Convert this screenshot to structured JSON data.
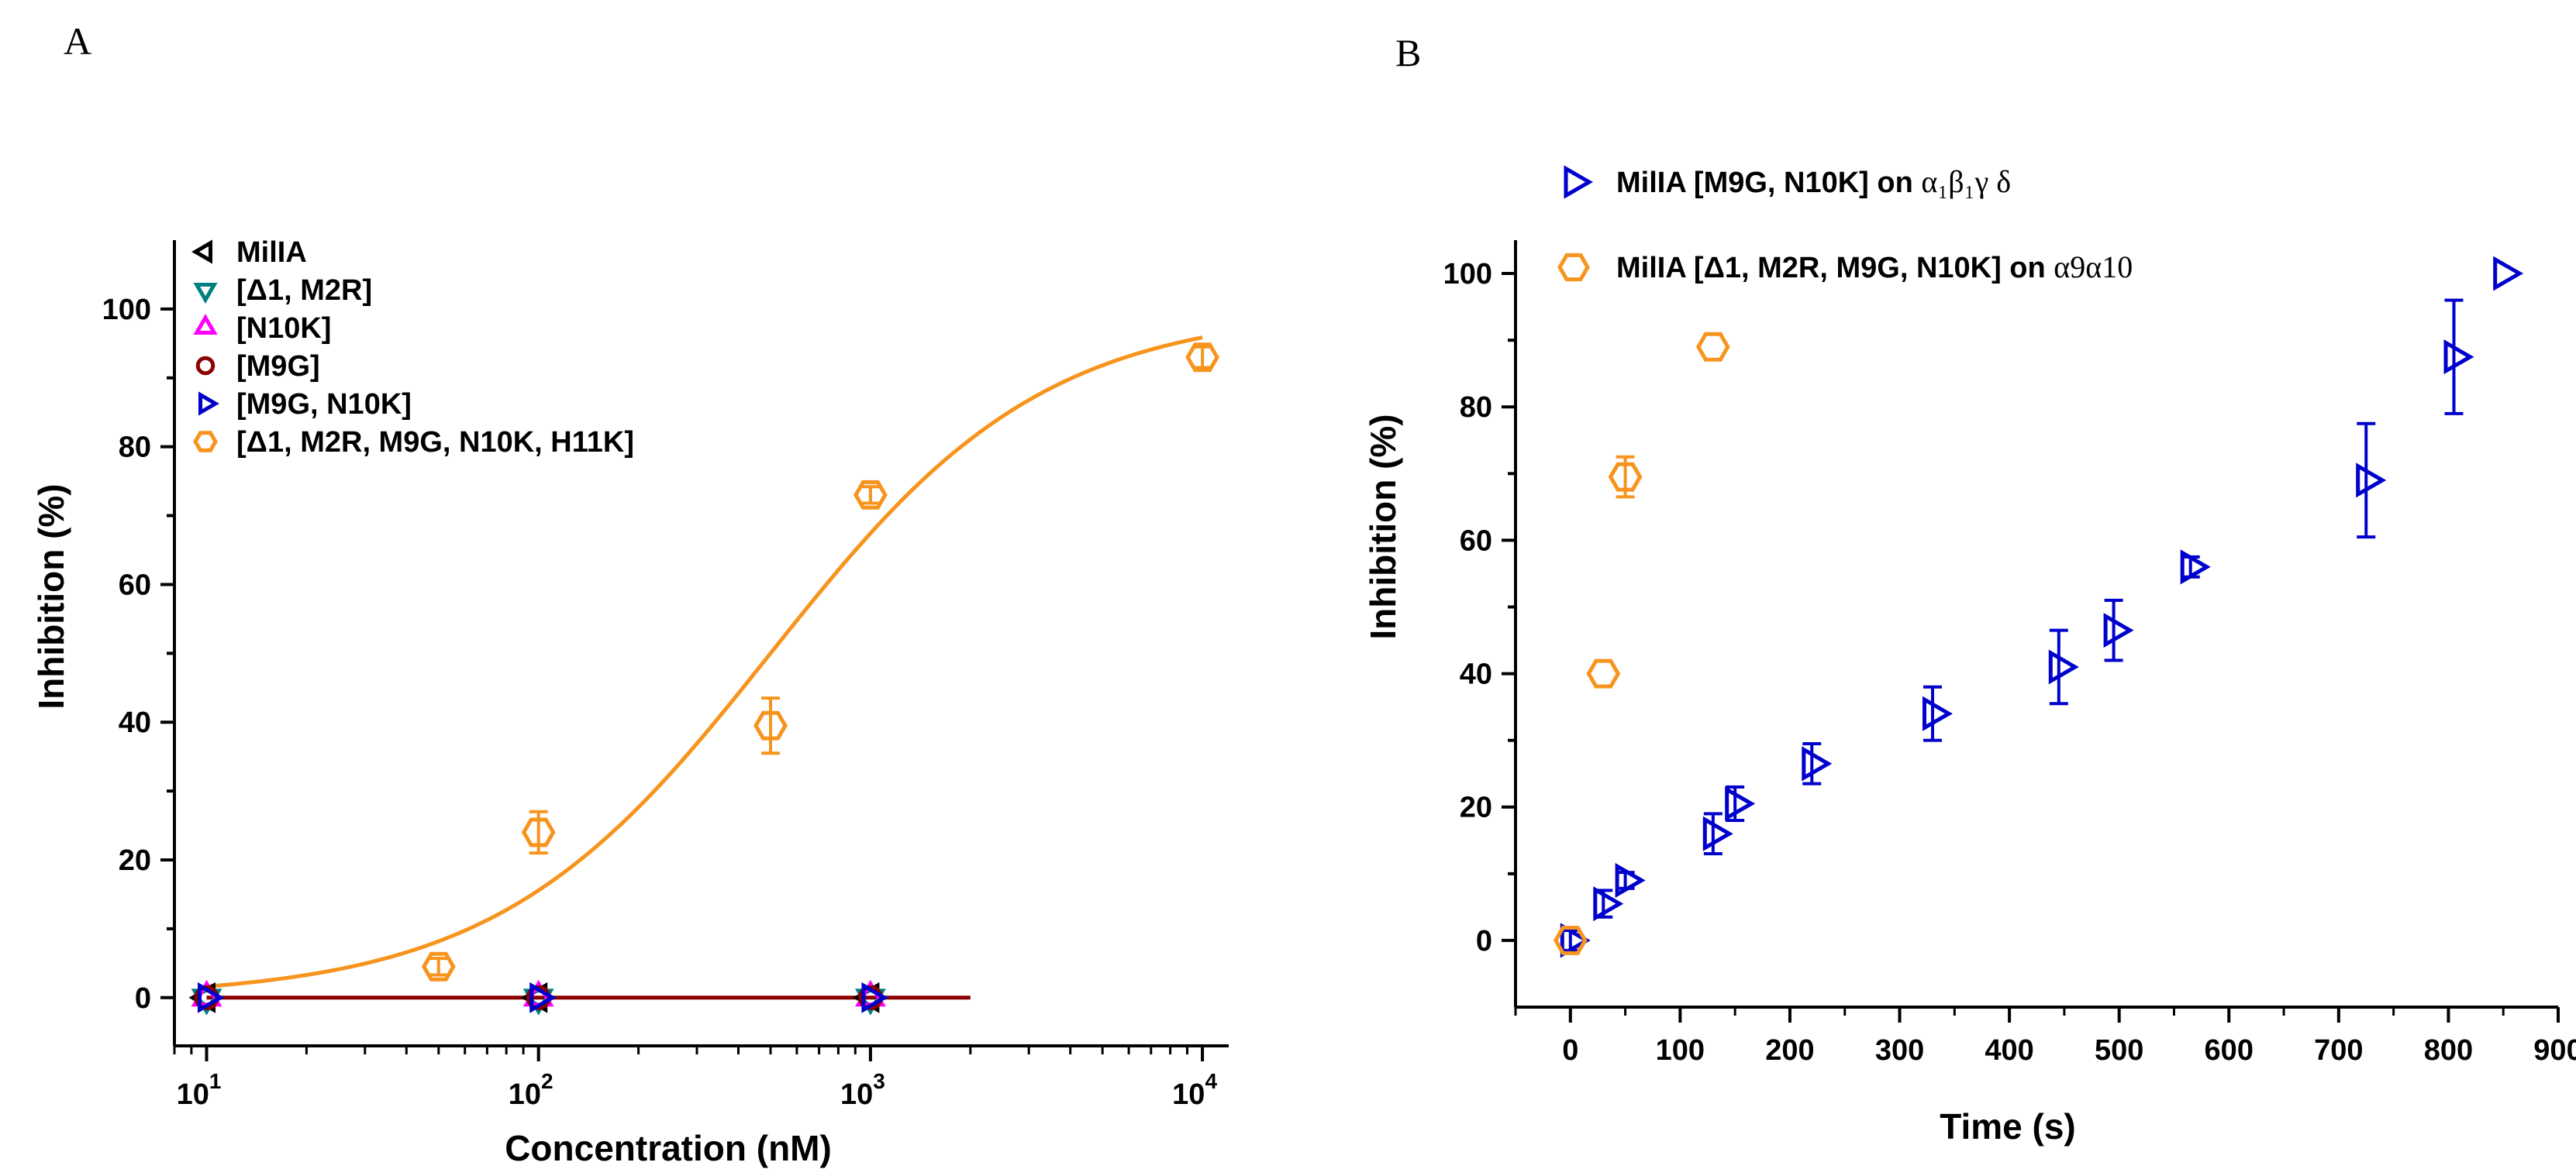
{
  "panels": {
    "a_label": "A",
    "b_label": "B"
  },
  "chart_data": [
    {
      "id": "A",
      "type": "scatter",
      "xscale": "log",
      "xlabel": "Concentration (nM)",
      "ylabel": "Inhibition (%)",
      "xlim": [
        8,
        12000
      ],
      "ylim": [
        -7,
        110
      ],
      "xticks": [
        {
          "base": "10",
          "exp": "1",
          "value": 10
        },
        {
          "base": "10",
          "exp": "2",
          "value": 100
        },
        {
          "base": "10",
          "exp": "3",
          "value": 1000
        },
        {
          "base": "10",
          "exp": "4",
          "value": 10000
        }
      ],
      "yticks": [
        "0",
        "20",
        "40",
        "60",
        "80",
        "100"
      ],
      "ytick_values": [
        0,
        20,
        40,
        60,
        80,
        100
      ],
      "legend_position": "top-left",
      "series": [
        {
          "name": "MilIA",
          "marker": "triangle-left",
          "color": "#000000",
          "x": [
            10,
            100,
            1000
          ],
          "y": [
            0,
            0,
            0
          ],
          "err": [
            0,
            0,
            0
          ]
        },
        {
          "name": "[Δ1, M2R]",
          "marker": "triangle-down",
          "color": "#008080",
          "x": [
            10,
            100,
            1000
          ],
          "y": [
            0,
            0,
            0
          ],
          "err": [
            0,
            0,
            0
          ]
        },
        {
          "name": "[N10K]",
          "marker": "triangle-up",
          "color": "#ff00ff",
          "x": [
            10,
            100,
            1000
          ],
          "y": [
            0,
            0,
            0
          ],
          "err": [
            0,
            0,
            0
          ]
        },
        {
          "name": "[M9G]",
          "marker": "circle",
          "color": "#8b0000",
          "x": [
            10,
            100,
            1000
          ],
          "y": [
            0,
            0,
            0
          ],
          "err": [
            0,
            0,
            0
          ]
        },
        {
          "name": "[M9G, N10K]",
          "marker": "triangle-right",
          "color": "#0000cc",
          "x": [
            10,
            100,
            1000
          ],
          "y": [
            0,
            0,
            0
          ],
          "err": [
            0,
            0,
            0
          ]
        },
        {
          "name": "[Δ1, M2R, M9G, N10K, H11K]",
          "marker": "hexagon",
          "color": "#f7941d",
          "x": [
            50,
            100,
            500,
            1000,
            10000
          ],
          "y": [
            4.5,
            24,
            39.5,
            73,
            93
          ],
          "err": [
            1.2,
            3,
            4,
            1.2,
            1.5
          ]
        }
      ],
      "fits": [
        {
          "name": "hill fit",
          "color": "#f7941d",
          "kind": "hill",
          "bottom": 0,
          "top": 100,
          "ic50": 500,
          "hill": 1.05,
          "x_from": 10,
          "x_to": 10000
        },
        {
          "name": "flat fit",
          "color": "#8b0000",
          "kind": "flat",
          "y": 0,
          "x_from": 10,
          "x_to": 2000
        }
      ]
    },
    {
      "id": "B",
      "type": "scatter",
      "xscale": "linear",
      "xlabel": "Time (s)",
      "ylabel": "Inhibition (%)",
      "xlim": [
        -50,
        900
      ],
      "ylim": [
        -10,
        105
      ],
      "xticks": [
        "0",
        "100",
        "200",
        "300",
        "400",
        "500",
        "600",
        "700",
        "800",
        "900"
      ],
      "xtick_values": [
        0,
        100,
        200,
        300,
        400,
        500,
        600,
        700,
        800,
        900
      ],
      "yticks": [
        "0",
        "20",
        "40",
        "60",
        "80",
        "100"
      ],
      "ytick_values": [
        0,
        20,
        40,
        60,
        80,
        100
      ],
      "legend_position": "top-left (above plot)",
      "series": [
        {
          "name": "MilIA [M9G, N10K] on",
          "suffix": "α₁β₁γ δ",
          "marker": "triangle-right",
          "color": "#0000cc",
          "x": [
            0,
            30,
            50,
            130,
            150,
            220,
            330,
            445,
            495,
            565,
            725,
            805,
            850
          ],
          "y": [
            0,
            5.5,
            9,
            16,
            20.5,
            26.5,
            34,
            41,
            46.5,
            56,
            69,
            87.5,
            100
          ],
          "err": [
            1.5,
            2,
            1.2,
            3,
            2.5,
            3,
            4,
            5.5,
            4.5,
            1.5,
            8.5,
            8.5,
            0
          ]
        },
        {
          "name": "MilIA [Δ1, M2R, M9G, N10K] on",
          "suffix": "α9α10",
          "marker": "hexagon",
          "color": "#f7941d",
          "x": [
            0,
            30,
            50,
            130
          ],
          "y": [
            0,
            40,
            69.5,
            89
          ],
          "err": [
            0,
            0,
            3,
            0
          ]
        }
      ]
    }
  ]
}
